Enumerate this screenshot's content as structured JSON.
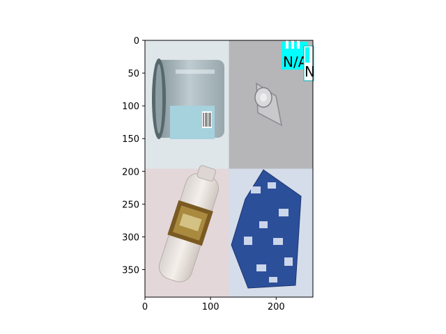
{
  "chart_data": {
    "type": "image",
    "title": "",
    "xlabel": "",
    "ylabel": "",
    "xlim": [
      0,
      256
    ],
    "ylim": [
      392,
      0
    ],
    "x_ticks": [
      0,
      100,
      200
    ],
    "y_ticks": [
      0,
      50,
      100,
      150,
      200,
      250,
      300,
      350
    ],
    "tiles": [
      {
        "label": "glass jar with label",
        "x": [
          0,
          128
        ],
        "y": [
          0,
          196
        ],
        "bg": "#dfe6ea"
      },
      {
        "label": "small clear plastic cup",
        "x": [
          128,
          256
        ],
        "y": [
          0,
          196
        ],
        "bg": "#b6b6b9"
      },
      {
        "label": "plastic water bottle",
        "x": [
          0,
          128
        ],
        "y": [
          196,
          392
        ],
        "bg": "#e3d7d9"
      },
      {
        "label": "blue printed plastic wrapper",
        "x": [
          128,
          256
        ],
        "y": [
          196,
          392
        ],
        "bg": "#d4dde9"
      }
    ],
    "annotations": [
      {
        "text": "N/A",
        "box_color": "#00ffff"
      },
      {
        "text": "N",
        "box_color": "#ffffff"
      }
    ]
  }
}
